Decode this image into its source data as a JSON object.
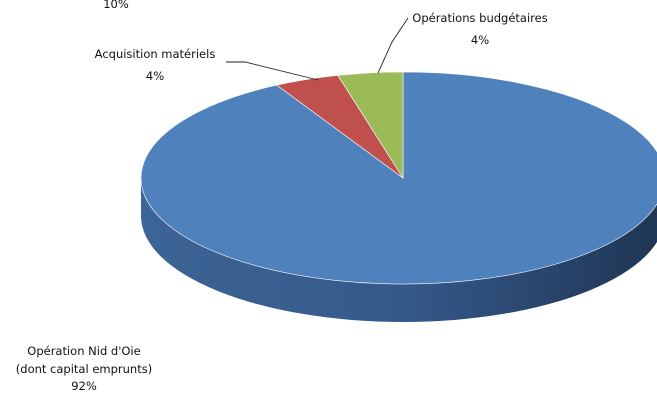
{
  "chart_data": {
    "type": "pie",
    "style": "3d",
    "title": "",
    "slices": [
      {
        "label": "Opération Nid d'Oie\n(dont capital emprunts)",
        "value": 92,
        "value_label": "92%",
        "color": "#4f81bd",
        "side_color": "#2b4a70"
      },
      {
        "label": "Acquisition matériels",
        "value": 4,
        "value_label": "4%",
        "color": "#c0504d",
        "side_color": "#7a2e2c"
      },
      {
        "label": "Opérations budgétaires",
        "value": 4,
        "value_label": "4%",
        "color": "#9bbb59",
        "side_color": "#5f7a32"
      }
    ],
    "partial_label": "10%"
  }
}
